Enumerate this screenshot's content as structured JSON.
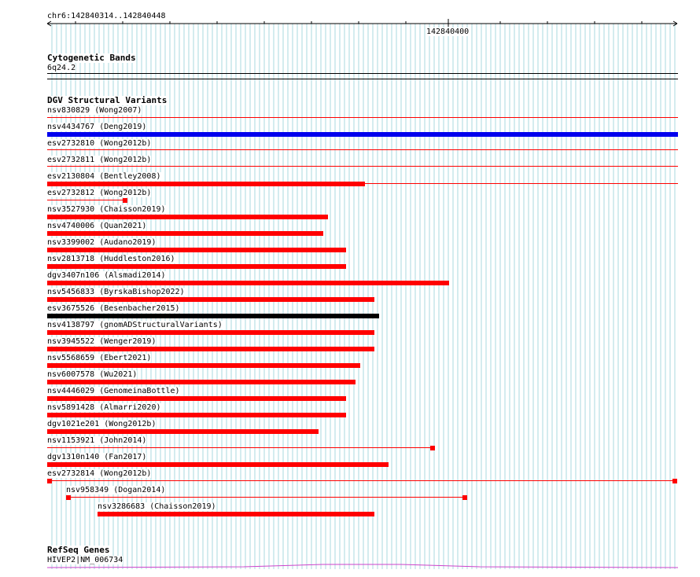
{
  "location": "chr6:142840314..142840448",
  "ruler_label": "142840400",
  "colors": {
    "grid": "#a9d8df",
    "sv_red": "#ff0000",
    "sv_blue": "#0000ee",
    "sv_black": "#000000",
    "gene": "#cc44cc"
  },
  "sections": {
    "cyto": {
      "title": "Cytogenetic Bands",
      "band": "6q24.2"
    },
    "dgv": {
      "title": "DGV Structural Variants"
    },
    "refseq": {
      "title": "RefSeq Genes",
      "gene": "HIVEP2|NM_006734"
    }
  },
  "variants": [
    {
      "id": "nsv830829",
      "study": "Wong2007",
      "type": "line",
      "color": "red"
    },
    {
      "id": "nsv4434767",
      "study": "Deng2019",
      "type": "bar",
      "color": "blue"
    },
    {
      "id": "esv2732810",
      "study": "Wong2012b",
      "type": "line",
      "color": "red"
    },
    {
      "id": "esv2732811",
      "study": "Wong2012b",
      "type": "line",
      "color": "red"
    },
    {
      "id": "esv2130804",
      "study": "Bentley2008",
      "type": "bar+line",
      "color": "red"
    },
    {
      "id": "esv2732812",
      "study": "Wong2012b",
      "type": "line+cap",
      "color": "red"
    },
    {
      "id": "nsv3527930",
      "study": "Chaisson2019",
      "type": "bar",
      "color": "red"
    },
    {
      "id": "nsv4740006",
      "study": "Quan2021",
      "type": "bar",
      "color": "red"
    },
    {
      "id": "nsv3399002",
      "study": "Audano2019",
      "type": "bar",
      "color": "red"
    },
    {
      "id": "nsv2813718",
      "study": "Huddleston2016",
      "type": "bar",
      "color": "red"
    },
    {
      "id": "dgv3407n106",
      "study": "Alsmadi2014",
      "type": "bar",
      "color": "red"
    },
    {
      "id": "nsv5456833",
      "study": "ByrskaBishop2022",
      "type": "bar",
      "color": "red"
    },
    {
      "id": "esv3675526",
      "study": "Besenbacher2015",
      "type": "bar",
      "color": "black"
    },
    {
      "id": "nsv4138797",
      "study": "gnomADStructuralVariants",
      "type": "bar",
      "color": "red"
    },
    {
      "id": "nsv3945522",
      "study": "Wenger2019",
      "type": "bar",
      "color": "red"
    },
    {
      "id": "nsv5568659",
      "study": "Ebert2021",
      "type": "bar",
      "color": "red"
    },
    {
      "id": "nsv6007578",
      "study": "Wu2021",
      "type": "bar",
      "color": "red"
    },
    {
      "id": "nsv4446029",
      "study": "GenomeinaBottle",
      "type": "bar",
      "color": "red"
    },
    {
      "id": "nsv5891428",
      "study": "Almarri2020",
      "type": "bar",
      "color": "red"
    },
    {
      "id": "dgv1021e201",
      "study": "Wong2012b",
      "type": "bar",
      "color": "red"
    },
    {
      "id": "nsv1153921",
      "study": "John2014",
      "type": "line+cap",
      "color": "red"
    },
    {
      "id": "dgv1310n140",
      "study": "Fan2017",
      "type": "bar",
      "color": "red"
    },
    {
      "id": "esv2732814",
      "study": "Wong2012b",
      "type": "cap+line+cap",
      "color": "red"
    },
    {
      "id": "nsv958349",
      "study": "Dogan2014",
      "type": "cap+line+cap",
      "color": "red"
    },
    {
      "id": "nsv3286683",
      "study": "Chaisson2019",
      "type": "bar",
      "color": "red"
    }
  ]
}
